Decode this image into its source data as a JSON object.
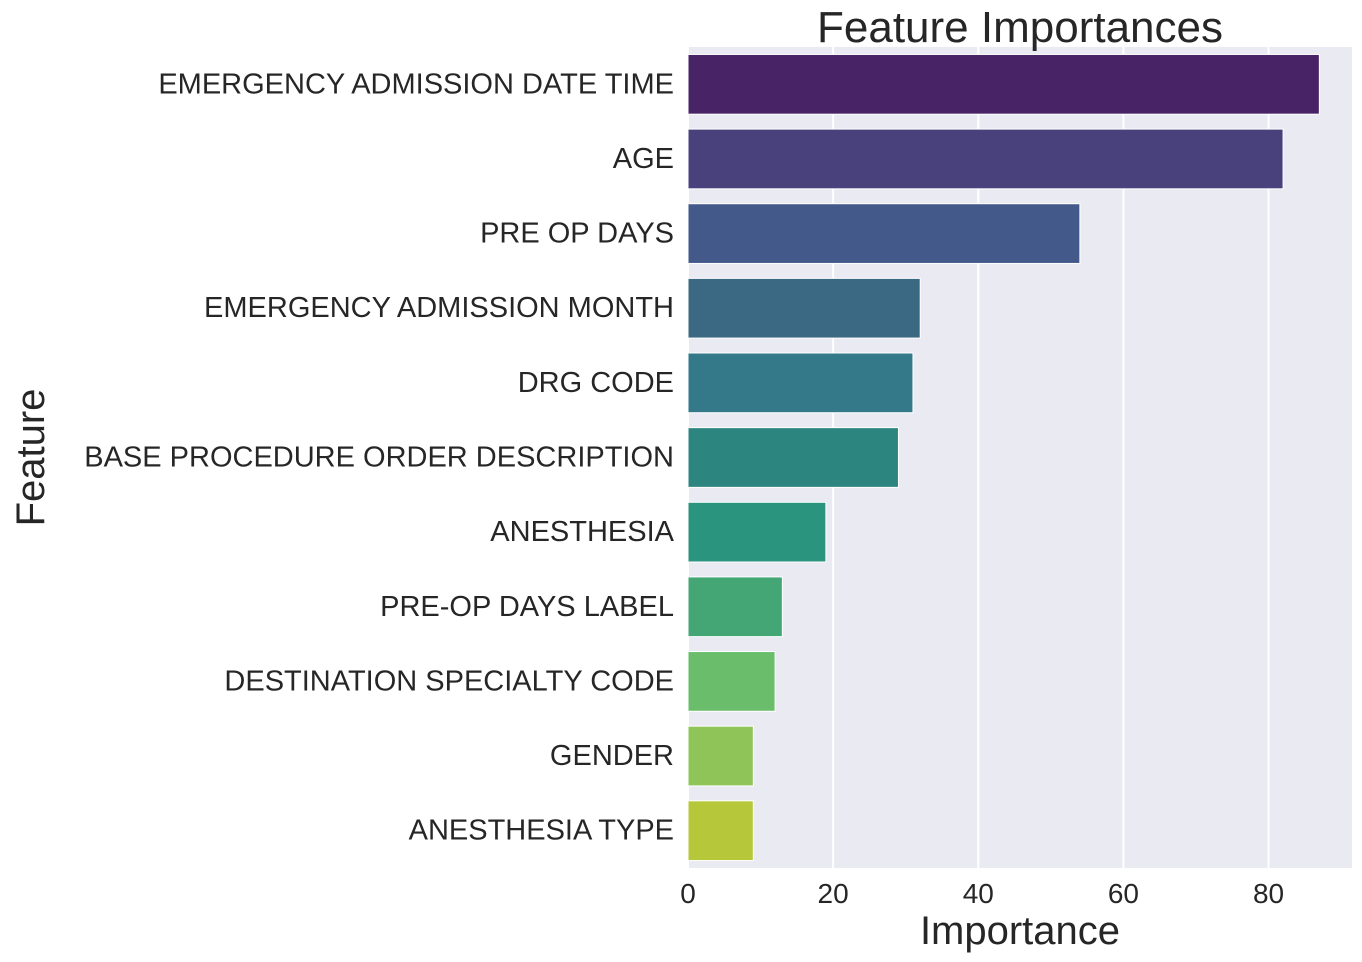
{
  "chart_data": {
    "type": "bar",
    "orientation": "horizontal",
    "title": "Feature Importances",
    "xlabel": "Importance",
    "ylabel": "Feature",
    "xlim": [
      0,
      91.5
    ],
    "xticks": [
      0,
      20,
      40,
      60,
      80
    ],
    "grid": true,
    "categories": [
      "EMERGENCY ADMISSION DATE TIME",
      "AGE",
      "PRE OP DAYS",
      "EMERGENCY ADMISSION MONTH",
      "DRG CODE",
      "BASE PROCEDURE ORDER DESCRIPTION",
      "ANESTHESIA",
      "PRE-OP DAYS LABEL",
      "DESTINATION SPECIALTY CODE",
      "GENDER",
      "ANESTHESIA TYPE"
    ],
    "values": [
      87,
      82,
      54,
      32,
      31,
      29,
      19,
      13,
      12,
      9,
      9
    ],
    "colors": [
      "#482466",
      "#48417c",
      "#42598a",
      "#3b6882",
      "#33798a",
      "#2c857f",
      "#2a947e",
      "#44a675",
      "#6abd6a",
      "#8fc458",
      "#b6c83a"
    ],
    "background_color": "#eaeaf2",
    "grid_color": "#ffffff"
  }
}
